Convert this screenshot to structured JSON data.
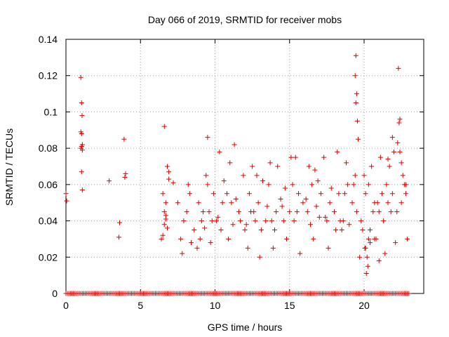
{
  "chart_data": {
    "type": "scatter",
    "title": "Day 066 of 2019, SRMTID for receiver mobs",
    "xlabel": "GPS time / hours",
    "ylabel": "SRMTID / TECUs",
    "xlim": [
      0,
      24
    ],
    "ylim": [
      0,
      0.14
    ],
    "xticks": [
      0,
      5,
      10,
      15,
      20
    ],
    "xtick_labels": [
      "0",
      "5",
      "10",
      "15",
      "20"
    ],
    "yticks": [
      0,
      0.02,
      0.04,
      0.06,
      0.08,
      0.1,
      0.12,
      0.14
    ],
    "ytick_labels": [
      "0",
      "0.02",
      "0.04",
      "0.06",
      "0.08",
      "0.1",
      "0.12",
      "0.14"
    ],
    "grid": true,
    "marker": "+",
    "series": [
      {
        "name": "SRMTID",
        "color": "#dd0000",
        "x": [
          0.0,
          0.05,
          1.0,
          1.05,
          1.08,
          1.0,
          1.05,
          1.1,
          1.0,
          1.05,
          1.1,
          1.05,
          1.1,
          2.9,
          3.6,
          3.55,
          3.9,
          4.0,
          3.95,
          6.4,
          6.5,
          6.6,
          6.7,
          6.8,
          6.9,
          6.5,
          6.6,
          6.7,
          6.8,
          6.6,
          6.7,
          6.9,
          7.2,
          7.5,
          7.8,
          7.9,
          8.1,
          8.3,
          8.6,
          8.9,
          9.2,
          9.5,
          9.8,
          10.2,
          10.5,
          10.8,
          11.1,
          11.4,
          11.7,
          12.0,
          12.3,
          12.6,
          12.9,
          13.2,
          13.5,
          13.8,
          14.1,
          14.4,
          14.7,
          15.0,
          15.3,
          15.6,
          15.9,
          16.2,
          16.5,
          16.8,
          17.1,
          17.4,
          17.7,
          18.0,
          18.3,
          18.6,
          18.9,
          19.2,
          19.5,
          19.8,
          20.1,
          20.4,
          20.7,
          21.0,
          21.3,
          21.6,
          21.9,
          22.2,
          22.5,
          22.8,
          9.9,
          10.6,
          11.9,
          12.4,
          13.6,
          14.5,
          15.2,
          16.1,
          16.9,
          17.8,
          18.7,
          19.3,
          19.4,
          19.45,
          19.4,
          19.5,
          19.45,
          19.55,
          19.6,
          20.0,
          20.3,
          20.6,
          20.9,
          21.2,
          21.5,
          21.8,
          22.3,
          22.4,
          22.35,
          22.25,
          22.4,
          22.5,
          22.6,
          22.7,
          22.8,
          21.9,
          20.2,
          20.15,
          20.25,
          20.1,
          20.3,
          20.4,
          20.8,
          21.0,
          20.05,
          19.9,
          9.1,
          9.3,
          9.6,
          10.1,
          10.4,
          11.2,
          11.6,
          12.1,
          12.7,
          13.1,
          13.4,
          14.0,
          14.6,
          15.5,
          16.4,
          17.0,
          17.5,
          18.1,
          18.4,
          19.0,
          7.7,
          8.4,
          8.8,
          9.0,
          9.7,
          10.9,
          12.2,
          13.0,
          13.9,
          14.8,
          15.7,
          16.6,
          17.6,
          18.5,
          19.7,
          20.7,
          21.4,
          22.1,
          22.9,
          8.2,
          9.4,
          11.0,
          12.5,
          13.7,
          15.1,
          16.3,
          17.3,
          18.2,
          21.1,
          21.7,
          22.0,
          9.5,
          10.3,
          11.3,
          12.8,
          14.2,
          15.4,
          16.7,
          18.8,
          20.5,
          21.6
        ],
        "y": [
          0.055,
          0.051,
          0.119,
          0.105,
          0.098,
          0.089,
          0.088,
          0.082,
          0.08,
          0.081,
          0.079,
          0.067,
          0.057,
          0.062,
          0.039,
          0.031,
          0.085,
          0.066,
          0.064,
          0.03,
          0.032,
          0.045,
          0.043,
          0.07,
          0.067,
          0.055,
          0.092,
          0.05,
          0.036,
          0.038,
          0.041,
          0.063,
          0.061,
          0.05,
          0.022,
          0.04,
          0.045,
          0.055,
          0.035,
          0.05,
          0.045,
          0.06,
          0.04,
          0.042,
          0.05,
          0.055,
          0.05,
          0.052,
          0.04,
          0.035,
          0.055,
          0.045,
          0.05,
          0.062,
          0.048,
          0.04,
          0.045,
          0.052,
          0.058,
          0.045,
          0.04,
          0.055,
          0.05,
          0.045,
          0.06,
          0.048,
          0.055,
          0.042,
          0.05,
          0.045,
          0.055,
          0.04,
          0.06,
          0.05,
          0.045,
          0.04,
          0.055,
          0.035,
          0.05,
          0.045,
          0.04,
          0.05,
          0.055,
          0.045,
          0.05,
          0.055,
          0.055,
          0.062,
          0.065,
          0.045,
          0.06,
          0.048,
          0.06,
          0.052,
          0.062,
          0.058,
          0.055,
          0.06,
          0.065,
          0.131,
          0.12,
          0.11,
          0.105,
          0.095,
          0.085,
          0.065,
          0.06,
          0.045,
          0.05,
          0.055,
          0.06,
          0.045,
          0.124,
          0.096,
          0.094,
          0.083,
          0.078,
          0.072,
          0.065,
          0.06,
          0.06,
          0.086,
          0.02,
          0.011,
          0.015,
          0.025,
          0.03,
          0.028,
          0.03,
          0.018,
          0.025,
          0.035,
          0.04,
          0.036,
          0.045,
          0.04,
          0.035,
          0.038,
          0.045,
          0.038,
          0.04,
          0.035,
          0.04,
          0.035,
          0.04,
          0.045,
          0.038,
          0.042,
          0.04,
          0.035,
          0.04,
          0.038,
          0.03,
          0.028,
          0.025,
          0.03,
          0.028,
          0.03,
          0.025,
          0.02,
          0.025,
          0.03,
          0.022,
          0.03,
          0.025,
          0.035,
          0.02,
          0.03,
          0.022,
          0.028,
          0.03,
          0.06,
          0.065,
          0.072,
          0.07,
          0.072,
          0.075,
          0.07,
          0.075,
          0.078,
          0.075,
          0.07,
          0.078,
          0.086,
          0.078,
          0.082,
          0.065,
          0.07,
          0.075,
          0.068,
          0.072,
          0.07,
          0.074
        ],
        "zero_line_from": 0,
        "zero_line_to": 23,
        "zero_line_value": 0
      }
    ]
  }
}
